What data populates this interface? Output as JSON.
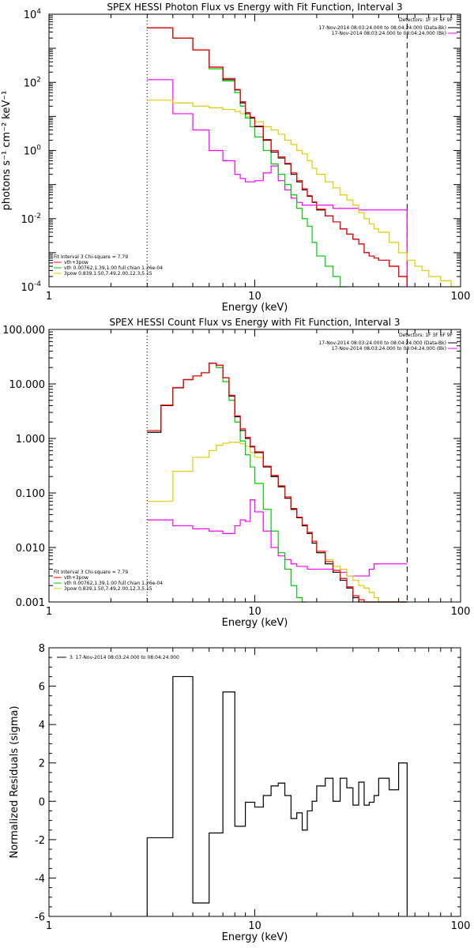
{
  "chart_data": [
    {
      "type": "line",
      "title": "SPEX HESSI Photon Flux vs Energy with Fit Function, Interval 3",
      "xlabel": "Energy (keV)",
      "ylabel": "photons s⁻¹ cm⁻² keV⁻¹",
      "xlog": true,
      "ylog": true,
      "xlim": [
        1,
        100
      ],
      "ylim": [
        0.0001,
        10000
      ],
      "xticks": [
        {
          "v": 1,
          "label": "1"
        },
        {
          "v": 10,
          "label": "10"
        },
        {
          "v": 100,
          "label": "100"
        }
      ],
      "yticks": [
        {
          "v": 0.0001,
          "base": "10",
          "exp": "-4"
        },
        {
          "v": 0.01,
          "base": "10",
          "exp": "-2"
        },
        {
          "v": 1,
          "base": "10",
          "exp": "0"
        },
        {
          "v": 100,
          "base": "10",
          "exp": "2"
        },
        {
          "v": 10000,
          "base": "10",
          "exp": "4"
        }
      ],
      "vlines": [
        {
          "x": 3.0,
          "style": "dotted"
        },
        {
          "x": 55,
          "style": "dashed"
        }
      ],
      "edges": [
        3.0,
        3.5,
        4.0,
        4.5,
        5.0,
        5.5,
        6.0,
        6.5,
        7.0,
        7.5,
        8.0,
        8.5,
        9.0,
        9.5,
        10.0,
        11.0,
        12.0,
        13.0,
        14.0,
        15.0,
        16.0,
        17.0,
        18.0,
        19.0,
        20.0,
        22.0,
        24.0,
        26.0,
        28.0,
        30.0,
        32.0,
        34.0,
        36.0,
        38.0,
        40.0,
        45.0,
        50.0,
        55.0,
        60.0,
        65.0,
        70.0,
        80.0,
        90.0,
        100.0
      ],
      "legend_top": {
        "header": "Detectors: 1F 3F 6F 9F",
        "entries": [
          {
            "label": "17-Nov-2014 08:03:24.000 to 08:04:24.000 (Data-Bk)",
            "color": "#000000"
          },
          {
            "label": "17-Nov-2014 08:03:24.000 to 08:04:24.000 (Bk)",
            "color": "#ff00ff"
          }
        ]
      },
      "legend_bottom": {
        "header": "Fit Interval 3   Chi-square = 7.79",
        "entries": [
          {
            "label": "vth+3pow",
            "color": "#ff0000"
          },
          {
            "label": "vth 0.00762,1.39,1.00  full chian 1.26e-04",
            "color": "#00cc00"
          },
          {
            "label": "3pow 0.839,1.50,7.49,2.00,12.3,5.15",
            "color": "#ddcc00"
          }
        ]
      },
      "series": [
        {
          "color": "#000000",
          "values": [
            4000,
            4000,
            2000,
            2000,
            900,
            900,
            280,
            280,
            120,
            120,
            60,
            25,
            12,
            9,
            5,
            2,
            0.9,
            0.6,
            0.4,
            0.2,
            0.12,
            0.07,
            0.045,
            0.03,
            0.018,
            0.012,
            0.008,
            0.005,
            0.0035,
            0.0025,
            0.0018,
            0.001,
            0.0008,
            0.0007,
            0.0006,
            0.0004,
            0.0002,
            null,
            null,
            null,
            null,
            null,
            null
          ]
        },
        {
          "color": "#ff0000",
          "values": [
            4000,
            4000,
            2000,
            2000,
            900,
            900,
            280,
            280,
            130,
            130,
            62,
            27,
            13,
            9.5,
            5.2,
            2.1,
            1.0,
            0.65,
            0.42,
            0.22,
            0.13,
            0.075,
            0.047,
            0.031,
            0.019,
            0.012,
            0.008,
            0.005,
            0.0035,
            0.0025,
            0.0018,
            0.001,
            0.0008,
            0.0007,
            0.0006,
            0.0004,
            0.0002,
            null,
            null,
            null,
            null,
            null,
            null
          ]
        },
        {
          "color": "#00cc00",
          "values": [
            4000,
            4000,
            2000,
            2000,
            900,
            900,
            250,
            250,
            110,
            110,
            50,
            20,
            9,
            5,
            2.5,
            1.0,
            0.4,
            0.2,
            0.1,
            0.05,
            0.02,
            0.01,
            0.006,
            0.002,
            0.0008,
            0.0004,
            0.0002,
            0.0001,
            null,
            null,
            null,
            null,
            null,
            null,
            null,
            null,
            null,
            null,
            null,
            null,
            null,
            null,
            null
          ]
        },
        {
          "color": "#ddcc00",
          "values": [
            30,
            30,
            25,
            25,
            20,
            20,
            18,
            18,
            16,
            16,
            14,
            12,
            10,
            9,
            7,
            5,
            4,
            3,
            2,
            1.5,
            1,
            0.8,
            0.5,
            0.3,
            0.2,
            0.12,
            0.08,
            0.05,
            0.035,
            0.025,
            0.015,
            0.01,
            0.007,
            0.005,
            0.004,
            0.002,
            0.001,
            0.0006,
            0.0004,
            0.0003,
            0.0002,
            0.00015,
            0.0001
          ]
        },
        {
          "color": "#ff00ff",
          "values": [
            120,
            120,
            12,
            12,
            4,
            4,
            1.0,
            1.0,
            0.5,
            0.5,
            0.2,
            0.15,
            0.12,
            0.12,
            0.13,
            0.22,
            0.35,
            0.13,
            0.07,
            0.04,
            0.03,
            0.025,
            0.025,
            0.025,
            0.025,
            0.025,
            0.02,
            0.02,
            0.02,
            0.02,
            0.018,
            0.018,
            0.018,
            0.018,
            0.018,
            0.018,
            0.018,
            null,
            null,
            null,
            null,
            null,
            null
          ]
        }
      ]
    },
    {
      "type": "line",
      "title": "SPEX HESSI Count Flux vs Energy with Fit Function, Interval 3",
      "xlabel": "Energy (keV)",
      "ylabel": "",
      "xlog": true,
      "ylog": true,
      "xlim": [
        1,
        100
      ],
      "ylim": [
        0.001,
        100
      ],
      "xticks": [
        {
          "v": 1,
          "label": "1"
        },
        {
          "v": 10,
          "label": "10"
        },
        {
          "v": 100,
          "label": "100"
        }
      ],
      "yticks": [
        {
          "v": 0.001,
          "label": "0.001"
        },
        {
          "v": 0.01,
          "label": "0.010"
        },
        {
          "v": 0.1,
          "label": "0.100"
        },
        {
          "v": 1,
          "label": "1.000"
        },
        {
          "v": 10,
          "label": "10.000"
        },
        {
          "v": 100,
          "label": "100.000"
        }
      ],
      "vlines": [
        {
          "x": 3.0,
          "style": "dotted"
        },
        {
          "x": 55,
          "style": "dashed"
        }
      ],
      "edges": [
        3.0,
        3.5,
        4.0,
        4.5,
        5.0,
        5.5,
        6.0,
        6.5,
        7.0,
        7.5,
        8.0,
        8.5,
        9.0,
        9.5,
        10.0,
        11.0,
        12.0,
        13.0,
        14.0,
        15.0,
        16.0,
        17.0,
        18.0,
        19.0,
        20.0,
        22.0,
        24.0,
        26.0,
        28.0,
        30.0,
        32.0,
        34.0,
        36.0,
        38.0,
        40.0,
        45.0,
        50.0,
        55.0
      ],
      "legend_top": {
        "header": "Detectors: 1F 3F 6F 9F",
        "entries": [
          {
            "label": "17-Nov-2014 08:03:24.000 to 08:04:24.000 (Data-Bk)",
            "color": "#000000"
          },
          {
            "label": "17-Nov-2014 08:03:24.000 to 08:04:24.000 (Bk)",
            "color": "#ff00ff"
          }
        ]
      },
      "legend_bottom": {
        "header": "Fit Interval 3   Chi-square = 7.79",
        "entries": [
          {
            "label": "vth+3pow",
            "color": "#ff0000"
          },
          {
            "label": "vth 0.00762,1.39,1.00  full chian 1.26e-04",
            "color": "#00cc00"
          },
          {
            "label": "3pow 0.839,1.50,7.49,2.00,12.3,5.15",
            "color": "#ddcc00"
          }
        ]
      },
      "series": [
        {
          "color": "#000000",
          "values": [
            1.3,
            4.0,
            8.5,
            12,
            14,
            16,
            24,
            22,
            13,
            6,
            2.5,
            1.4,
            1.0,
            0.7,
            0.55,
            0.3,
            0.2,
            0.13,
            0.08,
            0.05,
            0.035,
            0.025,
            0.018,
            0.012,
            0.008,
            0.005,
            0.0035,
            0.0025,
            0.0018,
            0.0012,
            0.001,
            0.001,
            0.001,
            0.001,
            0.001,
            0.001,
            0.001
          ]
        },
        {
          "color": "#ff0000",
          "values": [
            1.4,
            4.1,
            8.6,
            12,
            14,
            16,
            24,
            22,
            13,
            6.2,
            2.6,
            1.5,
            1.05,
            0.72,
            0.57,
            0.31,
            0.21,
            0.135,
            0.085,
            0.052,
            0.036,
            0.026,
            0.019,
            0.013,
            0.0085,
            0.0055,
            0.0038,
            0.0027,
            0.0019,
            0.0013,
            0.0011,
            0.001,
            0.001,
            0.001,
            0.001,
            0.001,
            0.001
          ]
        },
        {
          "color": "#00cc00",
          "values": [
            1.3,
            4.0,
            8.5,
            12,
            14,
            16,
            24,
            20,
            11,
            5,
            2.0,
            0.9,
            0.5,
            0.3,
            0.15,
            0.05,
            0.02,
            0.008,
            0.004,
            0.002,
            0.0012,
            0.001,
            null,
            null,
            null,
            null,
            null,
            null,
            null,
            null,
            null,
            null,
            null,
            null,
            null,
            null,
            null
          ]
        },
        {
          "color": "#ddcc00",
          "values": [
            0.07,
            0.07,
            0.25,
            0.25,
            0.45,
            0.45,
            0.6,
            0.75,
            0.82,
            0.85,
            0.85,
            0.8,
            0.72,
            0.55,
            0.45,
            0.3,
            0.2,
            0.13,
            0.08,
            0.05,
            0.035,
            0.025,
            0.018,
            0.012,
            0.008,
            0.006,
            0.0045,
            0.004,
            0.003,
            0.0025,
            0.002,
            0.0018,
            0.0015,
            0.0012,
            0.001,
            0.001,
            0.001
          ]
        },
        {
          "color": "#ff00ff",
          "values": [
            0.032,
            0.032,
            0.025,
            0.025,
            0.022,
            0.022,
            0.02,
            0.02,
            0.018,
            0.018,
            0.025,
            0.032,
            0.03,
            0.075,
            0.045,
            0.02,
            0.01,
            0.007,
            0.006,
            0.005,
            0.0045,
            0.0045,
            0.004,
            0.004,
            0.004,
            0.004,
            0.0035,
            0.0035,
            0.003,
            0.003,
            0.003,
            0.003,
            0.004,
            0.005,
            0.005,
            0.005,
            0.005
          ]
        }
      ]
    },
    {
      "type": "line",
      "title": "",
      "xlabel": "Energy (keV)",
      "ylabel": "Normalized Residuals (sigma)",
      "xlog": true,
      "ylog": false,
      "xlim": [
        1,
        100
      ],
      "ylim": [
        -6,
        8
      ],
      "xticks": [
        {
          "v": 1,
          "label": "1"
        },
        {
          "v": 10,
          "label": "10"
        },
        {
          "v": 100,
          "label": "100"
        }
      ],
      "yticks": [
        {
          "v": -6,
          "label": "-6"
        },
        {
          "v": -4,
          "label": "-4"
        },
        {
          "v": -2,
          "label": "-2"
        },
        {
          "v": 0,
          "label": "0"
        },
        {
          "v": 2,
          "label": "2"
        },
        {
          "v": 4,
          "label": "4"
        },
        {
          "v": 6,
          "label": "6"
        },
        {
          "v": 8,
          "label": "8"
        }
      ],
      "legend_top": {
        "entries": [
          {
            "label": "3. 17-Nov-2014 08:03:24.000 to 08:04:24.000",
            "color": "#000000"
          }
        ]
      },
      "edges": [
        3.0,
        4.0,
        5.0,
        6.0,
        7.0,
        7.5,
        8.0,
        8.5,
        9.0,
        9.5,
        10.0,
        11.0,
        12.0,
        13.0,
        14.0,
        15.0,
        16.0,
        17.0,
        18.0,
        19.0,
        20.0,
        22.0,
        24.0,
        26.0,
        28.0,
        30.0,
        32.0,
        34.0,
        36.0,
        38.0,
        40.0,
        45.0,
        50.0,
        55.0
      ],
      "series": [
        {
          "color": "#000000",
          "values": [
            -1.9,
            6.5,
            -5.3,
            -1.65,
            5.7,
            5.7,
            -1.3,
            -1.3,
            -0.05,
            -0.05,
            -0.3,
            0.3,
            0.8,
            0.95,
            0.3,
            -0.9,
            -0.6,
            -1.5,
            -0.5,
            0.0,
            0.8,
            1.2,
            0.0,
            1.2,
            0.7,
            -0.2,
            1.0,
            -0.2,
            -0.05,
            0.3,
            1.2,
            0.6,
            2.0
          ]
        }
      ]
    }
  ]
}
